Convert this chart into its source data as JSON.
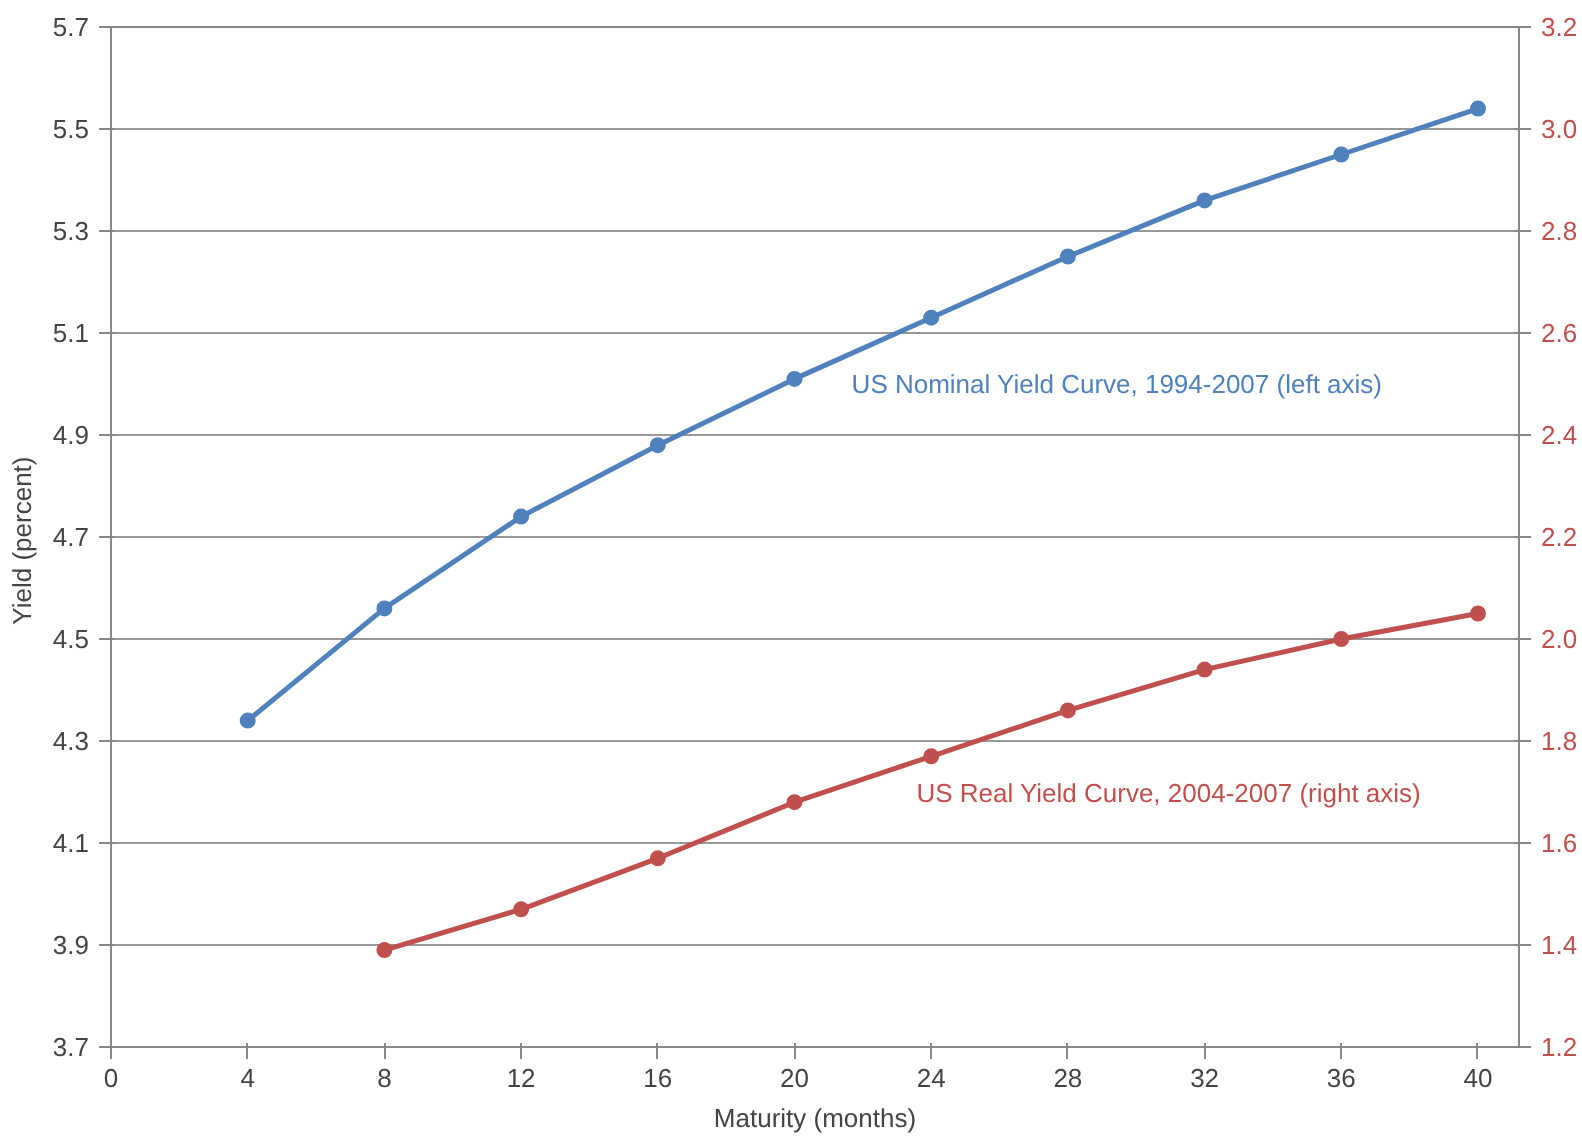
{
  "chart_data": {
    "type": "line",
    "xlabel": "Maturity (months)",
    "ylabel": "Yield  (percent)",
    "x": [
      4,
      8,
      12,
      16,
      20,
      24,
      28,
      32,
      36,
      40
    ],
    "xlim": [
      0,
      41.2
    ],
    "xticks": [
      0,
      4,
      8,
      12,
      16,
      20,
      24,
      28,
      32,
      36,
      40
    ],
    "ylim": [
      3.7,
      5.7
    ],
    "yticks": [
      3.7,
      3.9,
      4.1,
      4.3,
      4.5,
      4.7,
      4.9,
      5.1,
      5.3,
      5.5,
      5.7
    ],
    "y2lim": [
      1.2,
      3.2
    ],
    "y2ticks": [
      1.2,
      1.4,
      1.6,
      1.8,
      {
        "value": 2,
        "label": "2.0"
      },
      2.2,
      2.4,
      2.6,
      2.8,
      {
        "value": 3,
        "label": "3.0"
      },
      3.2
    ],
    "series": [
      {
        "color": "#4f81bd",
        "values": [
          4.34,
          4.56,
          4.74,
          4.88,
          5.01,
          5.13,
          5.25,
          5.36,
          5.45,
          5.54
        ]
      },
      {
        "color": "#c0504d",
        "axis": "y2",
        "values": [
          null,
          1.39,
          1.47,
          1.57,
          1.68,
          1.77,
          1.86,
          1.94,
          2.0,
          2.05
        ]
      }
    ],
    "annotations": [
      "US Nominal Yield Curve, 1994-2007 (left axis)",
      "US Real Yield Curve, 2004-2007 (right axis)"
    ],
    "grid": "y",
    "marker": "circle",
    "line_style": "solid"
  }
}
